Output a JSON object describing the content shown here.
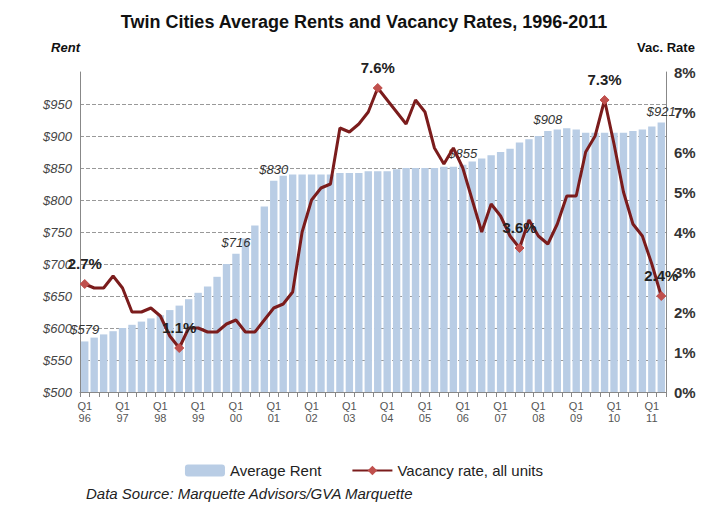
{
  "chart_data": {
    "type": "bar",
    "title": "Twin Cities Average Rents and Vacancy Rates, 1996-2011",
    "caption": "Data Source: Marquette Advisors/GVA Marquette",
    "y_label": "Rent",
    "y2_label": "Vac. Rate",
    "categories": [
      "Q1\n96",
      null,
      null,
      null,
      "Q1\n97",
      null,
      null,
      null,
      "Q1\n98",
      null,
      null,
      null,
      "Q1\n99",
      null,
      null,
      null,
      "Q1\n00",
      null,
      null,
      null,
      "Q1\n01",
      null,
      null,
      null,
      "Q1\n02",
      null,
      null,
      null,
      "Q1\n03",
      null,
      null,
      null,
      "Q1\n04",
      null,
      null,
      null,
      "Q1\n05",
      null,
      null,
      null,
      "Q1\n06",
      null,
      null,
      null,
      "Q1\n07",
      null,
      null,
      null,
      "Q1\n08",
      null,
      null,
      null,
      "Q1\n09",
      null,
      null,
      null,
      "Q1\n10",
      null,
      null,
      null,
      "Q1\n11",
      null
    ],
    "series": [
      {
        "name": "Average Rent",
        "type": "bar",
        "color": "#b9cde5",
        "values": [
          579,
          585,
          590,
          595,
          600,
          605,
          610,
          615,
          620,
          628,
          635,
          645,
          655,
          665,
          680,
          700,
          716,
          740,
          760,
          790,
          830,
          838,
          840,
          840,
          840,
          840,
          840,
          842,
          842,
          842,
          845,
          845,
          845,
          848,
          850,
          850,
          850,
          850,
          852,
          852,
          855,
          860,
          865,
          870,
          875,
          880,
          890,
          895,
          900,
          908,
          910,
          912,
          910,
          905,
          905,
          905,
          905,
          905,
          908,
          910,
          915,
          921
        ],
        "value_labels": [
          "$579",
          null,
          null,
          null,
          null,
          null,
          null,
          null,
          null,
          null,
          null,
          null,
          null,
          null,
          null,
          null,
          "$716",
          null,
          null,
          null,
          "$830",
          null,
          null,
          null,
          null,
          null,
          null,
          null,
          null,
          null,
          null,
          null,
          null,
          null,
          null,
          null,
          null,
          null,
          null,
          null,
          "$855",
          null,
          null,
          null,
          null,
          null,
          null,
          null,
          null,
          "$908",
          null,
          null,
          null,
          null,
          null,
          null,
          null,
          null,
          null,
          null,
          null,
          "$921"
        ]
      },
      {
        "name": "Vacancy rate, all units",
        "type": "line",
        "axis": "y2",
        "color": "#7b1c1c",
        "marker": "diamond",
        "values": [
          2.7,
          2.6,
          2.6,
          2.9,
          2.6,
          2.0,
          2.0,
          2.1,
          1.9,
          1.4,
          1.1,
          1.6,
          1.6,
          1.5,
          1.5,
          1.7,
          1.8,
          1.5,
          1.5,
          1.8,
          2.1,
          2.2,
          2.5,
          4.0,
          4.8,
          5.1,
          5.2,
          6.6,
          6.5,
          6.7,
          7.0,
          7.6,
          7.3,
          7.0,
          6.7,
          7.3,
          7.0,
          6.1,
          5.7,
          6.1,
          5.6,
          4.8,
          4.0,
          4.7,
          4.4,
          3.9,
          3.6,
          4.3,
          3.9,
          3.7,
          4.2,
          4.9,
          4.9,
          6.0,
          6.4,
          7.3,
          6.2,
          5.0,
          4.2,
          3.9,
          3.2,
          2.4
        ],
        "value_labels": [
          "2.7%",
          null,
          null,
          null,
          null,
          null,
          null,
          null,
          null,
          null,
          "1.1%",
          null,
          null,
          null,
          null,
          null,
          null,
          null,
          null,
          null,
          null,
          null,
          null,
          null,
          null,
          null,
          null,
          null,
          null,
          null,
          null,
          "7.6%",
          null,
          null,
          null,
          null,
          null,
          null,
          null,
          null,
          null,
          null,
          null,
          null,
          null,
          null,
          "3.6%",
          null,
          null,
          null,
          null,
          null,
          null,
          null,
          null,
          "7.3%",
          null,
          null,
          null,
          null,
          null,
          "2.4%"
        ]
      }
    ],
    "ylim": [
      500,
      1000
    ],
    "yticks": [
      {
        "value": 500,
        "label": "$500"
      },
      {
        "value": 550,
        "label": "$550"
      },
      {
        "value": 600,
        "label": "$600"
      },
      {
        "value": 650,
        "label": "$650"
      },
      {
        "value": 700,
        "label": "$700"
      },
      {
        "value": 750,
        "label": "$750"
      },
      {
        "value": 800,
        "label": "$800"
      },
      {
        "value": 850,
        "label": "$850"
      },
      {
        "value": 900,
        "label": "$900"
      },
      {
        "value": 950,
        "label": "$950"
      }
    ],
    "y2lim": [
      0,
      8
    ],
    "y2ticks": [
      {
        "value": 0,
        "label": "0%"
      },
      {
        "value": 1,
        "label": "1%"
      },
      {
        "value": 2,
        "label": "2%"
      },
      {
        "value": 3,
        "label": "3%"
      },
      {
        "value": 4,
        "label": "4%"
      },
      {
        "value": 5,
        "label": "5%"
      },
      {
        "value": 6,
        "label": "6%"
      },
      {
        "value": 7,
        "label": "7%"
      },
      {
        "value": 8,
        "label": "8%"
      }
    ],
    "grid": true,
    "legend": "bottom"
  }
}
